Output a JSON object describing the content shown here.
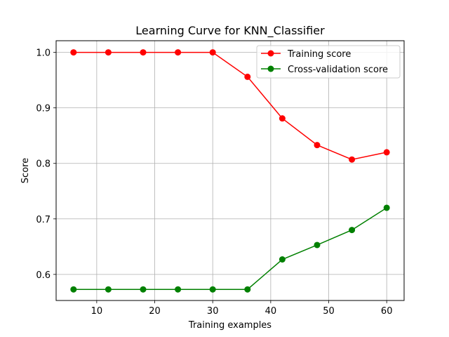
{
  "chart_data": {
    "type": "line",
    "title": "Learning Curve for KNN_Classifier",
    "xlabel": "Training examples",
    "ylabel": "Score",
    "x": [
      6,
      12,
      18,
      24,
      30,
      36,
      42,
      48,
      54,
      60
    ],
    "xlim": [
      3,
      63
    ],
    "ylim": [
      0.553,
      1.021
    ],
    "xticks": [
      10,
      20,
      30,
      40,
      50,
      60
    ],
    "yticks": [
      0.6,
      0.7,
      0.8,
      0.9,
      1.0
    ],
    "xtick_labels": [
      "10",
      "20",
      "30",
      "40",
      "50",
      "60"
    ],
    "ytick_labels": [
      "0.6",
      "0.7",
      "0.8",
      "0.9",
      "1.0"
    ],
    "grid": true,
    "legend_position": "top-right",
    "series": [
      {
        "name": "Training score",
        "color": "#ff0000",
        "values": [
          1.0,
          1.0,
          1.0,
          1.0,
          1.0,
          0.956,
          0.881,
          0.833,
          0.807,
          0.82
        ]
      },
      {
        "name": "Cross-validation score",
        "color": "#008000",
        "values": [
          0.573,
          0.573,
          0.573,
          0.573,
          0.573,
          0.573,
          0.627,
          0.653,
          0.68,
          0.72
        ]
      }
    ]
  }
}
